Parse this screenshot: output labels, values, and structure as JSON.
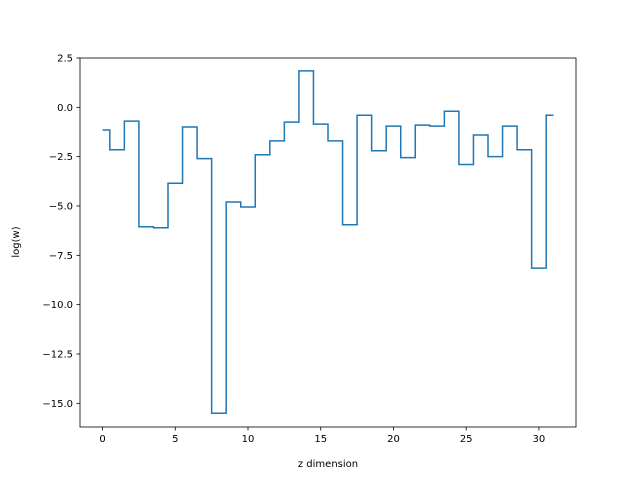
{
  "chart_data": {
    "type": "line",
    "drawstyle": "steps-mid",
    "title": "",
    "xlabel": "z dimension",
    "ylabel": "log(w)",
    "xlim": [
      -1.55,
      32.55
    ],
    "ylim": [
      -16.2,
      2.5
    ],
    "xticks": [
      0,
      5,
      10,
      15,
      20,
      25,
      30
    ],
    "yticks": [
      2.5,
      0.0,
      -2.5,
      -5.0,
      -7.5,
      -10.0,
      -12.5,
      -15.0
    ],
    "ytick_labels": [
      "2.5",
      "0.0",
      "−2.5",
      "−5.0",
      "−7.5",
      "−10.0",
      "−12.5",
      "−15.0"
    ],
    "grid": false,
    "color": "#1f77b4",
    "series": [
      {
        "x": [
          0,
          1,
          2,
          3,
          4,
          5,
          6,
          7,
          8,
          9,
          10,
          11,
          12,
          13,
          14,
          15,
          16,
          17,
          18,
          19,
          20,
          21,
          22,
          23,
          24,
          25,
          26,
          27,
          28,
          29,
          30,
          31
        ],
        "values": [
          -1.15,
          -2.15,
          -0.7,
          -6.05,
          -6.1,
          -3.85,
          -1.0,
          -2.6,
          -15.5,
          -4.8,
          -5.05,
          -2.4,
          -1.7,
          -0.75,
          1.85,
          -0.85,
          -1.7,
          -5.95,
          -0.4,
          -2.2,
          -0.95,
          -2.55,
          -0.9,
          -0.95,
          -0.2,
          -2.9,
          -1.4,
          -2.5,
          -0.95,
          -2.15,
          -8.15,
          -0.4
        ]
      }
    ]
  }
}
